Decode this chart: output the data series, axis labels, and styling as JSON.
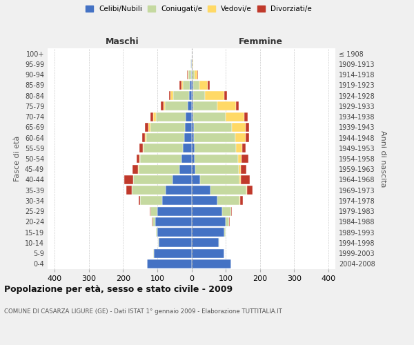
{
  "age_groups": [
    "0-4",
    "5-9",
    "10-14",
    "15-19",
    "20-24",
    "25-29",
    "30-34",
    "35-39",
    "40-44",
    "45-49",
    "50-54",
    "55-59",
    "60-64",
    "65-69",
    "70-74",
    "75-79",
    "80-84",
    "85-89",
    "90-94",
    "95-99",
    "100+"
  ],
  "birth_years": [
    "2004-2008",
    "1999-2003",
    "1994-1998",
    "1989-1993",
    "1984-1988",
    "1979-1983",
    "1974-1978",
    "1969-1973",
    "1964-1968",
    "1959-1963",
    "1954-1958",
    "1949-1953",
    "1944-1948",
    "1939-1943",
    "1934-1938",
    "1929-1933",
    "1924-1928",
    "1919-1923",
    "1914-1918",
    "1909-1913",
    "≤ 1908"
  ],
  "maschi": {
    "celibe": [
      130,
      110,
      95,
      100,
      105,
      100,
      85,
      75,
      55,
      35,
      30,
      25,
      22,
      20,
      18,
      12,
      8,
      5,
      2,
      1,
      0
    ],
    "coniugato": [
      0,
      1,
      2,
      3,
      8,
      20,
      65,
      100,
      115,
      120,
      120,
      115,
      110,
      100,
      85,
      65,
      45,
      20,
      8,
      2,
      0
    ],
    "vedovo": [
      0,
      0,
      0,
      0,
      0,
      0,
      0,
      0,
      1,
      2,
      2,
      2,
      3,
      5,
      8,
      5,
      8,
      5,
      2,
      0,
      0
    ],
    "divorziato": [
      0,
      0,
      0,
      0,
      2,
      2,
      5,
      15,
      25,
      15,
      8,
      10,
      10,
      10,
      8,
      8,
      5,
      5,
      2,
      0,
      0
    ]
  },
  "femmine": {
    "nubile": [
      115,
      95,
      80,
      95,
      100,
      90,
      75,
      55,
      25,
      12,
      10,
      10,
      8,
      8,
      5,
      5,
      5,
      5,
      2,
      1,
      0
    ],
    "coniugata": [
      0,
      1,
      2,
      5,
      10,
      25,
      65,
      105,
      115,
      125,
      125,
      120,
      120,
      110,
      95,
      70,
      35,
      18,
      8,
      2,
      0
    ],
    "vedova": [
      0,
      0,
      0,
      0,
      0,
      0,
      2,
      3,
      5,
      8,
      12,
      18,
      30,
      40,
      55,
      55,
      55,
      25,
      8,
      2,
      0
    ],
    "divorziata": [
      0,
      0,
      0,
      0,
      2,
      3,
      8,
      15,
      25,
      15,
      20,
      10,
      10,
      10,
      10,
      8,
      8,
      5,
      2,
      0,
      0
    ]
  },
  "colors": {
    "celibe": "#4472c4",
    "coniugato": "#c5d9a0",
    "vedovo": "#ffd966",
    "divorziato": "#c0392b"
  },
  "legend_labels": [
    "Celibi/Nubili",
    "Coniugati/e",
    "Vedovi/e",
    "Divorziati/e"
  ],
  "xlim": 420,
  "title": "Popolazione per età, sesso e stato civile - 2009",
  "subtitle": "COMUNE DI CASARZA LIGURE (GE) - Dati ISTAT 1° gennaio 2009 - Elaborazione TUTTITALIA.IT",
  "ylabel_left": "Fasce di età",
  "ylabel_right": "Anni di nascita",
  "xlabel_maschi": "Maschi",
  "xlabel_femmine": "Femmine",
  "bg_color": "#f0f0f0",
  "plot_bg": "#ffffff"
}
